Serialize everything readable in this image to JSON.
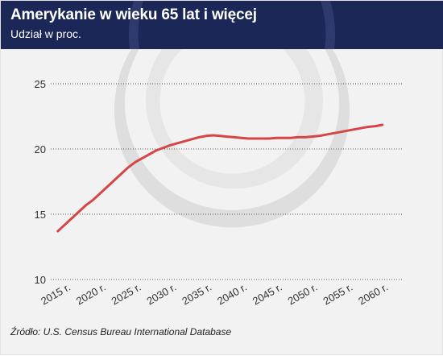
{
  "header": {
    "title": "Amerykanie w wieku 65 lat i więcej",
    "subtitle": "Udział w proc."
  },
  "source": "Źródło: U.S. Census Bureau International Database",
  "colors": {
    "header_bg": "#1b2757",
    "line": "#d64545",
    "grid": "#555555",
    "watermark": "#dedede"
  },
  "chart_data": {
    "type": "line",
    "title": "Amerykanie w wieku 65 lat i więcej",
    "subtitle": "Udział w proc.",
    "xlabel": "",
    "ylabel": "",
    "categories": [
      "2015 r.",
      "2020 r.",
      "2025 r.",
      "2030 r.",
      "2035 r.",
      "2040 r.",
      "2045 r.",
      "2050 r.",
      "2055 r.",
      "2060 r."
    ],
    "x": [
      2014,
      2015,
      2016,
      2017,
      2018,
      2019,
      2020,
      2021,
      2022,
      2023,
      2024,
      2025,
      2026,
      2027,
      2028,
      2029,
      2030,
      2031,
      2032,
      2033,
      2034,
      2035,
      2036,
      2037,
      2038,
      2039,
      2040,
      2041,
      2042,
      2043,
      2044,
      2045,
      2046,
      2047,
      2048,
      2049,
      2050,
      2051,
      2052,
      2053,
      2054,
      2055,
      2056,
      2057,
      2058,
      2059,
      2060
    ],
    "series": [
      {
        "values": [
          13.7,
          14.2,
          14.7,
          15.2,
          15.7,
          16.1,
          16.6,
          17.1,
          17.6,
          18.1,
          18.6,
          19.0,
          19.3,
          19.6,
          19.9,
          20.1,
          20.3,
          20.45,
          20.6,
          20.75,
          20.9,
          21.0,
          21.05,
          21.0,
          20.95,
          20.9,
          20.85,
          20.8,
          20.8,
          20.8,
          20.8,
          20.85,
          20.85,
          20.85,
          20.9,
          20.9,
          20.95,
          21.0,
          21.1,
          21.2,
          21.3,
          21.4,
          21.5,
          21.6,
          21.7,
          21.75,
          21.85
        ]
      }
    ],
    "ylim": [
      10,
      25
    ],
    "yticks": [
      10,
      15,
      20,
      25
    ],
    "grid": "horizontal dotted",
    "legend": "none"
  }
}
